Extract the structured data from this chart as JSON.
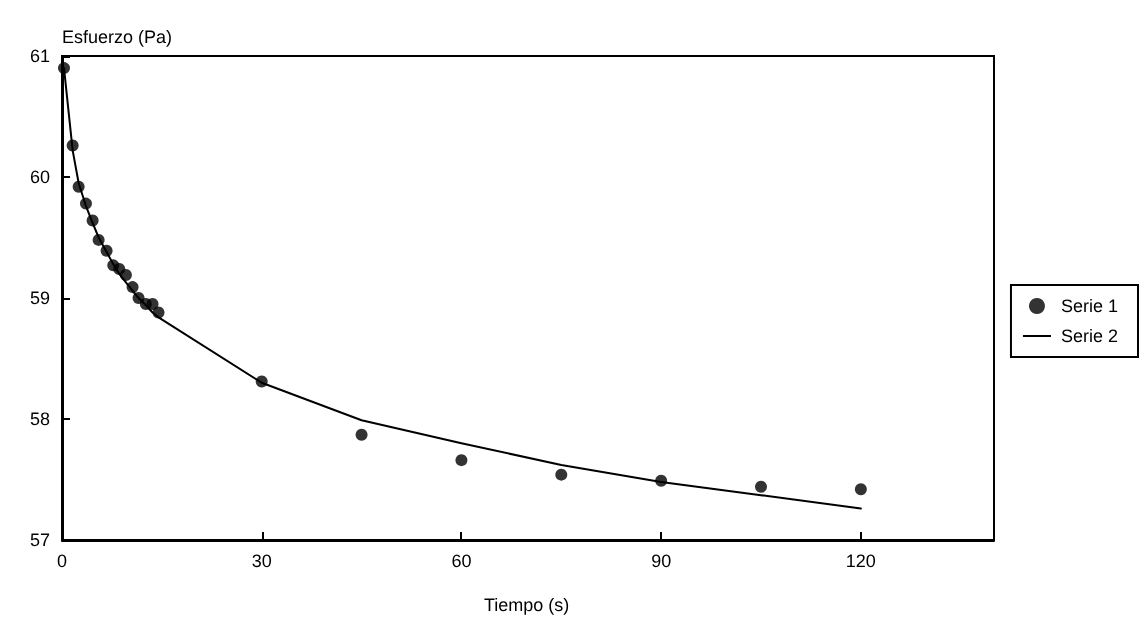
{
  "chart_data": {
    "type": "scatter",
    "xlabel": "Tiempo (s)",
    "ylabel": "Esfuerzo (Pa)",
    "xlim": [
      0,
      140
    ],
    "xticks": [
      0,
      30,
      60,
      90,
      120
    ],
    "ylim": [
      57,
      61
    ],
    "yticks": [
      57,
      58,
      59,
      60,
      61
    ],
    "grid": false,
    "legend": "right",
    "series": [
      {
        "name": "Serie 1",
        "marker": "circle",
        "color": "#000000",
        "x": [
          0.3,
          1.6,
          2.5,
          3.6,
          4.6,
          5.5,
          6.7,
          7.7,
          8.6,
          9.6,
          10.6,
          11.5,
          12.6,
          13.6,
          14.5,
          30,
          45,
          60,
          75,
          90,
          105,
          120
        ],
        "values": [
          60.9,
          60.26,
          59.92,
          59.78,
          59.64,
          59.48,
          59.39,
          59.27,
          59.24,
          59.19,
          59.09,
          59.0,
          58.95,
          58.95,
          58.88,
          58.31,
          57.87,
          57.66,
          57.54,
          57.49,
          57.44,
          57.42
        ]
      },
      {
        "name": "Serie 2",
        "type": "line",
        "marker": "none",
        "line_style": "solid",
        "color": "#000000",
        "x": [
          0.3,
          1.6,
          2.5,
          3.6,
          4.6,
          5.5,
          6.7,
          7.7,
          8.6,
          9.6,
          10.6,
          11.5,
          12.6,
          13.6,
          14.5,
          30,
          45,
          60,
          75,
          90,
          105,
          120
        ],
        "values": [
          60.9,
          60.22,
          59.95,
          59.76,
          59.62,
          59.5,
          59.38,
          59.28,
          59.2,
          59.13,
          59.06,
          59.0,
          58.94,
          58.88,
          58.84,
          58.3,
          57.99,
          57.8,
          57.62,
          57.48,
          57.37,
          57.26
        ]
      }
    ]
  }
}
